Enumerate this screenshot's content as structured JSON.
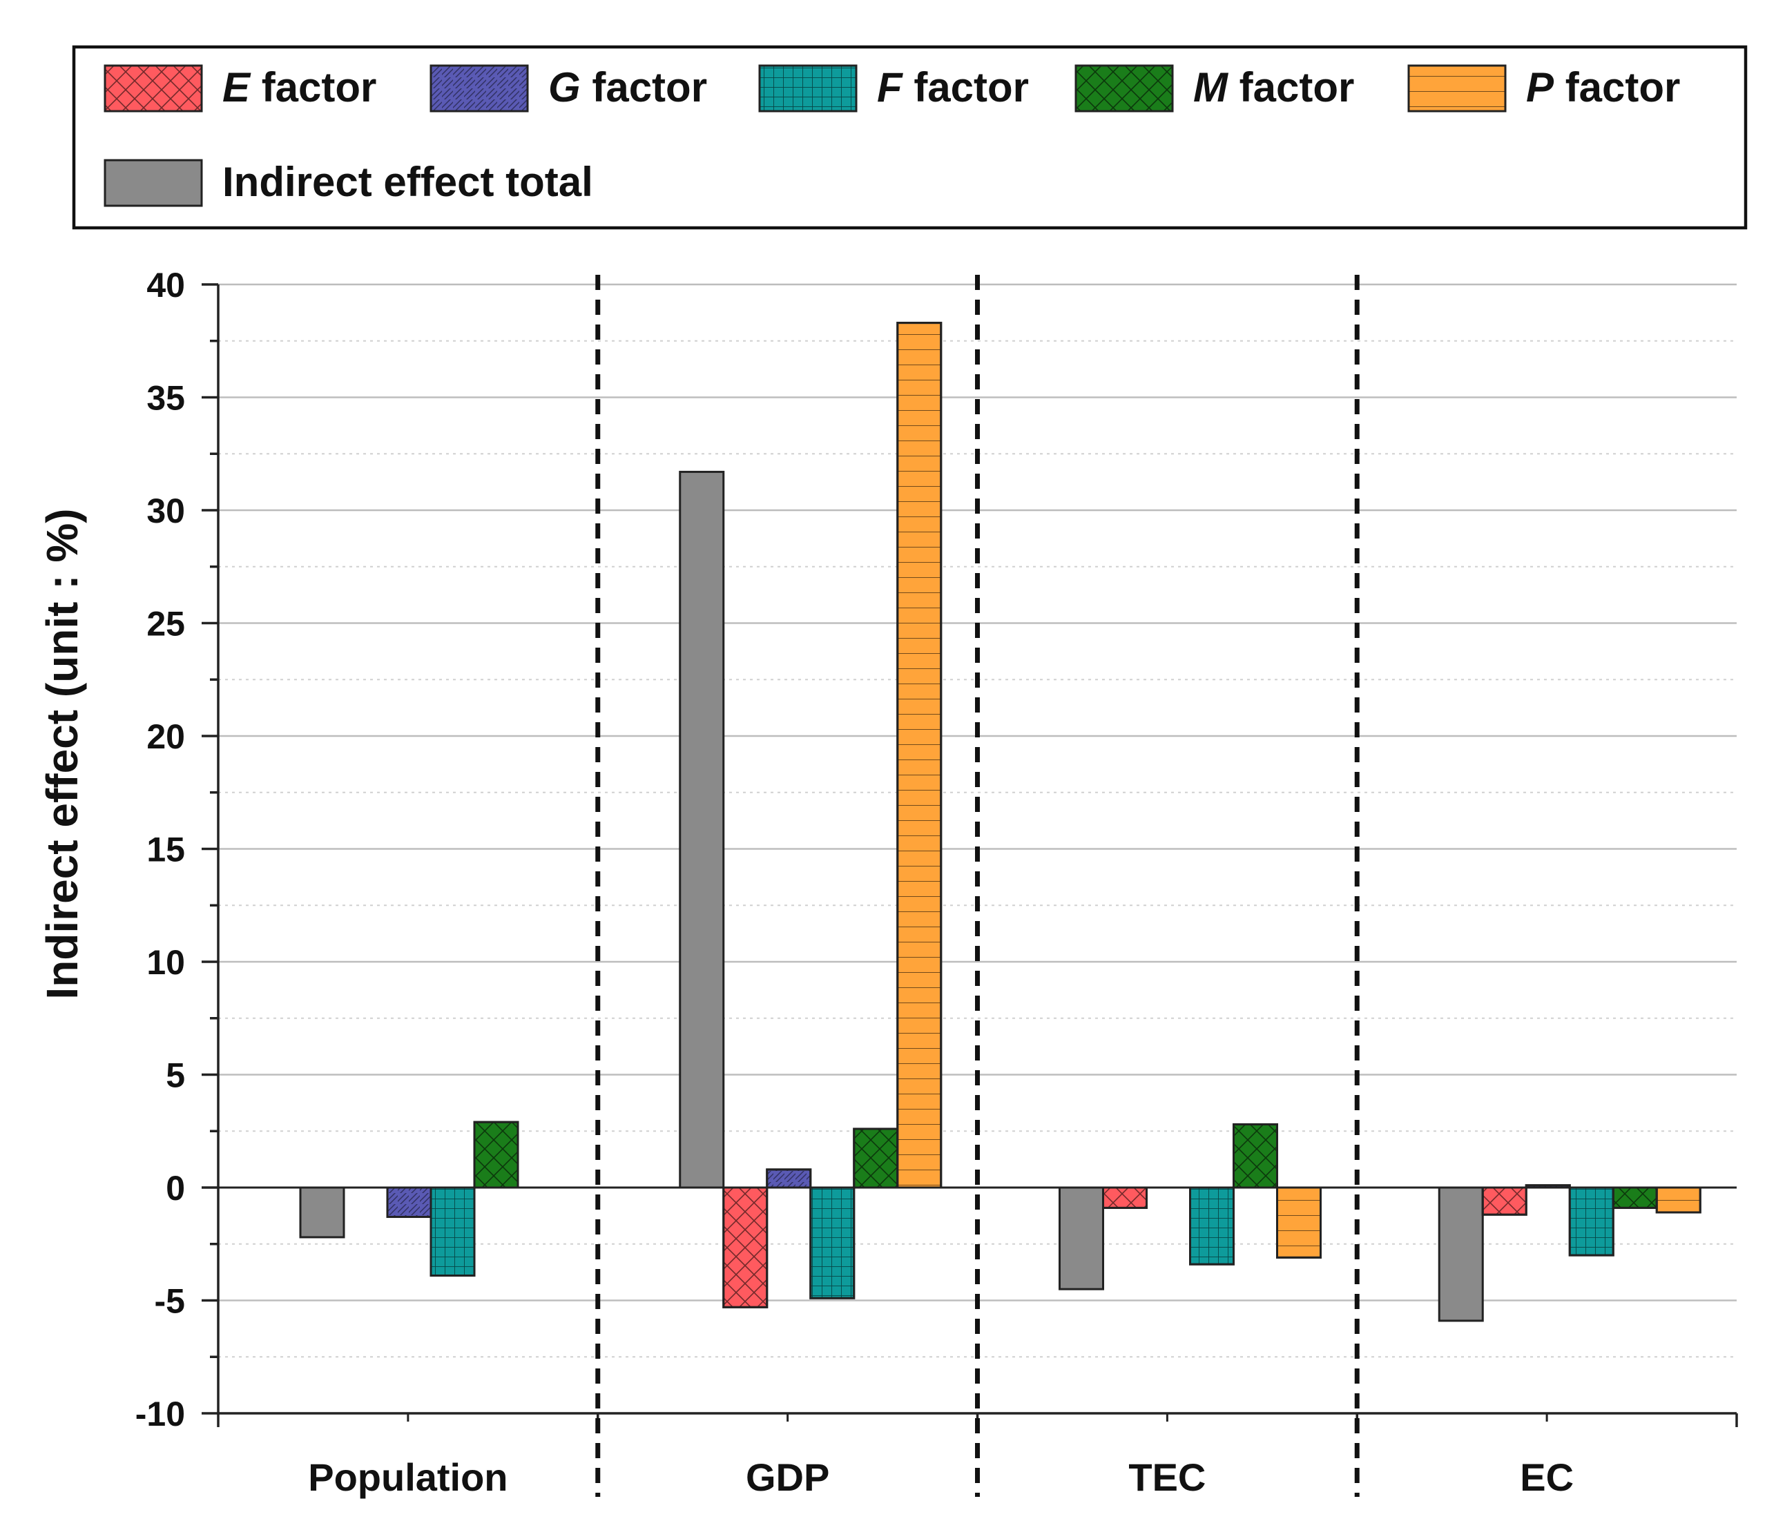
{
  "chart_data": {
    "type": "bar",
    "title": "",
    "xlabel": "",
    "ylabel": "Indirect effect (unit : %)",
    "ylim": [
      -10,
      40
    ],
    "yticks": [
      -10,
      -5,
      0,
      5,
      10,
      15,
      20,
      25,
      30,
      35,
      40
    ],
    "grid": true,
    "legend_position": "top",
    "categories": [
      "Population",
      "GDP",
      "TEC",
      "EC"
    ],
    "series": [
      {
        "key": "total",
        "name": "Indirect effect total",
        "color": "#8a8a8a",
        "pattern": "solid",
        "values": [
          -2.2,
          31.7,
          -4.5,
          -5.9
        ]
      },
      {
        "key": "E",
        "name": "E factor",
        "letter": "E",
        "suffix": " factor",
        "color": "#ff5a5f",
        "pattern": "crosshatch",
        "values": [
          0.0,
          -5.3,
          -0.9,
          -1.2
        ]
      },
      {
        "key": "G",
        "name": "G factor",
        "letter": "G",
        "suffix": " factor",
        "color": "#5a5ab4",
        "pattern": "diagonal",
        "values": [
          -1.3,
          0.8,
          0.0,
          0.1
        ]
      },
      {
        "key": "F",
        "name": "F factor",
        "letter": "F",
        "suffix": " factor",
        "color": "#0e9b9b",
        "pattern": "grid",
        "values": [
          -3.9,
          -4.9,
          -3.4,
          -3.0
        ]
      },
      {
        "key": "M",
        "name": "M factor",
        "letter": "M",
        "suffix": " factor",
        "color": "#1a7d1a",
        "pattern": "crosshatch",
        "values": [
          2.9,
          2.6,
          2.8,
          -0.9
        ]
      },
      {
        "key": "P",
        "name": "P factor",
        "letter": "P",
        "suffix": " factor",
        "color": "#ffa43a",
        "pattern": "horizontal",
        "values": [
          0.0,
          38.3,
          -3.1,
          -1.1
        ]
      }
    ],
    "legend_order": [
      "E",
      "G",
      "F",
      "M",
      "P",
      "total"
    ]
  }
}
